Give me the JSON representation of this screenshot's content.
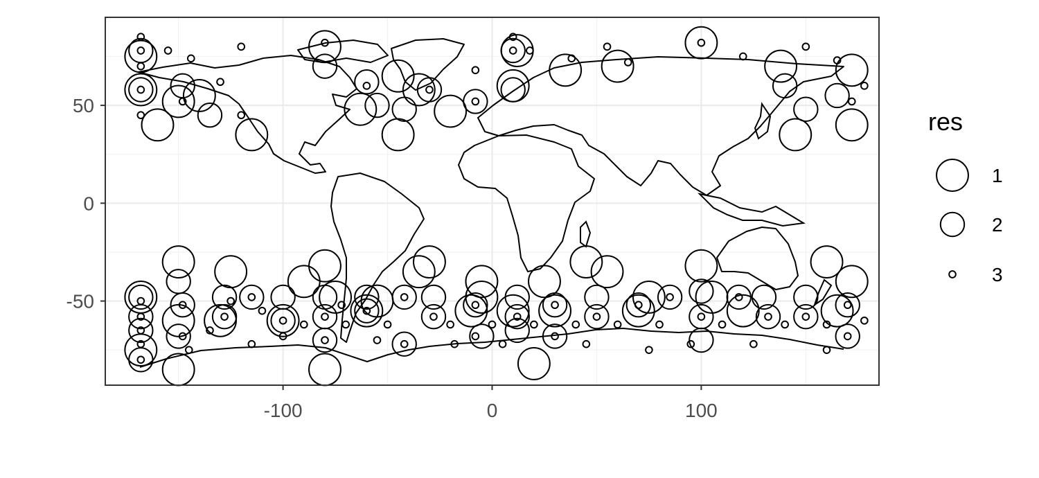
{
  "chart_data": {
    "type": "scatter",
    "title": "",
    "xlabel": "",
    "ylabel": "",
    "xlim": [
      -185,
      185
    ],
    "ylim": [
      -93,
      95
    ],
    "grid": true,
    "x_ticks": [
      -100,
      0,
      100
    ],
    "x_tick_labels": [
      "-100",
      "0",
      "100"
    ],
    "y_ticks": [
      -50,
      0,
      50
    ],
    "y_tick_labels": [
      "-50",
      "0",
      "50"
    ],
    "legend": {
      "title": "res",
      "placement": "right",
      "entries": [
        {
          "label": "1",
          "res": 1
        },
        {
          "label": "2",
          "res": 2
        },
        {
          "label": "3",
          "res": 3
        }
      ]
    },
    "size_by_res": {
      "1": 7.6,
      "2": 5.7,
      "3": 1.6
    },
    "background_map": "world coastlines",
    "series": [
      {
        "res": 1,
        "points": [
          [
            -150,
            52
          ],
          [
            -160,
            40
          ],
          [
            -115,
            35
          ],
          [
            -45,
            35
          ],
          [
            -20,
            47
          ],
          [
            -63,
            48
          ],
          [
            -35,
            58
          ],
          [
            145,
            35
          ],
          [
            172,
            40
          ],
          [
            -90,
            -40
          ],
          [
            -125,
            -35
          ],
          [
            -35,
            -35
          ],
          [
            -5,
            -40
          ],
          [
            25,
            -40
          ],
          [
            55,
            -35
          ],
          [
            100,
            -32
          ],
          [
            172,
            -40
          ],
          [
            -168,
            -48
          ],
          [
            -80,
            -32
          ],
          [
            -150,
            -60
          ],
          [
            -130,
            -60
          ],
          [
            -100,
            -60
          ],
          [
            -60,
            -55
          ],
          [
            -10,
            -55
          ],
          [
            10,
            -55
          ],
          [
            30,
            -55
          ],
          [
            70,
            -55
          ],
          [
            120,
            -55
          ],
          [
            165,
            -55
          ],
          [
            -150,
            -85
          ],
          [
            -80,
            -85
          ],
          [
            20,
            -82
          ],
          [
            -168,
            58
          ],
          [
            -168,
            75
          ],
          [
            -80,
            80
          ],
          [
            12,
            78
          ],
          [
            100,
            82
          ],
          [
            138,
            70
          ],
          [
            172,
            68
          ],
          [
            -140,
            55
          ],
          [
            -45,
            65
          ],
          [
            10,
            60
          ],
          [
            35,
            68
          ],
          [
            60,
            70
          ],
          [
            -168,
            -75
          ],
          [
            -150,
            -30
          ],
          [
            -30,
            -30
          ],
          [
            45,
            -30
          ],
          [
            -55,
            -50
          ],
          [
            160,
            -30
          ],
          [
            -75,
            -48
          ],
          [
            -5,
            -48
          ],
          [
            75,
            -48
          ],
          [
            105,
            -48
          ]
        ]
      },
      {
        "res": 2,
        "points": [
          [
            -168,
            78
          ],
          [
            -168,
            58
          ],
          [
            -148,
            60
          ],
          [
            -135,
            45
          ],
          [
            -80,
            70
          ],
          [
            -60,
            62
          ],
          [
            -30,
            58
          ],
          [
            10,
            78
          ],
          [
            10,
            58
          ],
          [
            -8,
            52
          ],
          [
            -55,
            50
          ],
          [
            -42,
            48
          ],
          [
            150,
            48
          ],
          [
            140,
            60
          ],
          [
            165,
            55
          ],
          [
            -168,
            -58
          ],
          [
            -148,
            -52
          ],
          [
            -128,
            -58
          ],
          [
            -115,
            -48
          ],
          [
            -100,
            -60
          ],
          [
            -80,
            -58
          ],
          [
            -60,
            -55
          ],
          [
            -42,
            -48
          ],
          [
            -28,
            -58
          ],
          [
            -8,
            -52
          ],
          [
            12,
            -58
          ],
          [
            30,
            -52
          ],
          [
            50,
            -58
          ],
          [
            70,
            -52
          ],
          [
            85,
            -48
          ],
          [
            100,
            -58
          ],
          [
            118,
            -48
          ],
          [
            132,
            -58
          ],
          [
            150,
            -58
          ],
          [
            170,
            -52
          ],
          [
            -168,
            -80
          ],
          [
            -150,
            -68
          ],
          [
            -80,
            -70
          ],
          [
            -42,
            -72
          ],
          [
            12,
            -65
          ],
          [
            30,
            -68
          ],
          [
            -5,
            -68
          ],
          [
            100,
            -70
          ],
          [
            170,
            -68
          ],
          [
            -168,
            -65
          ],
          [
            -128,
            -48
          ],
          [
            -100,
            -48
          ],
          [
            -80,
            -48
          ],
          [
            -60,
            -48
          ],
          [
            -28,
            -48
          ],
          [
            12,
            -48
          ],
          [
            50,
            -48
          ],
          [
            100,
            -45
          ],
          [
            130,
            -48
          ],
          [
            150,
            -48
          ],
          [
            -168,
            -48
          ],
          [
            -150,
            -40
          ]
        ]
      },
      {
        "res": 3,
        "points": [
          [
            -168,
            78
          ],
          [
            -168,
            85
          ],
          [
            -168,
            70
          ],
          [
            -168,
            58
          ],
          [
            -148,
            52
          ],
          [
            -144,
            74
          ],
          [
            -120,
            80
          ],
          [
            -80,
            82
          ],
          [
            -60,
            60
          ],
          [
            -30,
            58
          ],
          [
            10,
            78
          ],
          [
            10,
            85
          ],
          [
            18,
            78
          ],
          [
            -8,
            68
          ],
          [
            -8,
            52
          ],
          [
            38,
            74
          ],
          [
            65,
            72
          ],
          [
            55,
            80
          ],
          [
            100,
            82
          ],
          [
            120,
            75
          ],
          [
            150,
            80
          ],
          [
            165,
            73
          ],
          [
            172,
            52
          ],
          [
            -168,
            -58
          ],
          [
            -168,
            -50
          ],
          [
            -168,
            -65
          ],
          [
            -148,
            -52
          ],
          [
            -148,
            -68
          ],
          [
            -128,
            -58
          ],
          [
            -115,
            -48
          ],
          [
            -115,
            -72
          ],
          [
            -100,
            -60
          ],
          [
            -100,
            -68
          ],
          [
            -80,
            -58
          ],
          [
            -80,
            -70
          ],
          [
            -60,
            -55
          ],
          [
            -42,
            -48
          ],
          [
            -42,
            -72
          ],
          [
            -28,
            -58
          ],
          [
            -8,
            -52
          ],
          [
            -8,
            -68
          ],
          [
            12,
            -58
          ],
          [
            30,
            -52
          ],
          [
            30,
            -68
          ],
          [
            50,
            -58
          ],
          [
            70,
            -52
          ],
          [
            85,
            -48
          ],
          [
            100,
            -58
          ],
          [
            118,
            -48
          ],
          [
            132,
            -58
          ],
          [
            150,
            -58
          ],
          [
            170,
            -52
          ],
          [
            170,
            -68
          ],
          [
            178,
            -60
          ],
          [
            -168,
            -80
          ],
          [
            -168,
            -72
          ],
          [
            -145,
            -75
          ],
          [
            -110,
            -55
          ],
          [
            -90,
            -62
          ],
          [
            -70,
            -62
          ],
          [
            -50,
            -62
          ],
          [
            -20,
            -62
          ],
          [
            0,
            -62
          ],
          [
            20,
            -62
          ],
          [
            40,
            -62
          ],
          [
            60,
            -62
          ],
          [
            80,
            -62
          ],
          [
            110,
            -62
          ],
          [
            140,
            -62
          ],
          [
            160,
            -62
          ],
          [
            -135,
            -65
          ],
          [
            -125,
            -50
          ],
          [
            -72,
            -52
          ],
          [
            -55,
            -70
          ],
          [
            -18,
            -72
          ],
          [
            5,
            -72
          ],
          [
            45,
            -72
          ],
          [
            75,
            -75
          ],
          [
            95,
            -72
          ],
          [
            125,
            -72
          ],
          [
            160,
            -75
          ],
          [
            178,
            60
          ],
          [
            -168,
            45
          ],
          [
            -130,
            62
          ],
          [
            -120,
            45
          ],
          [
            -155,
            78
          ]
        ]
      }
    ]
  }
}
